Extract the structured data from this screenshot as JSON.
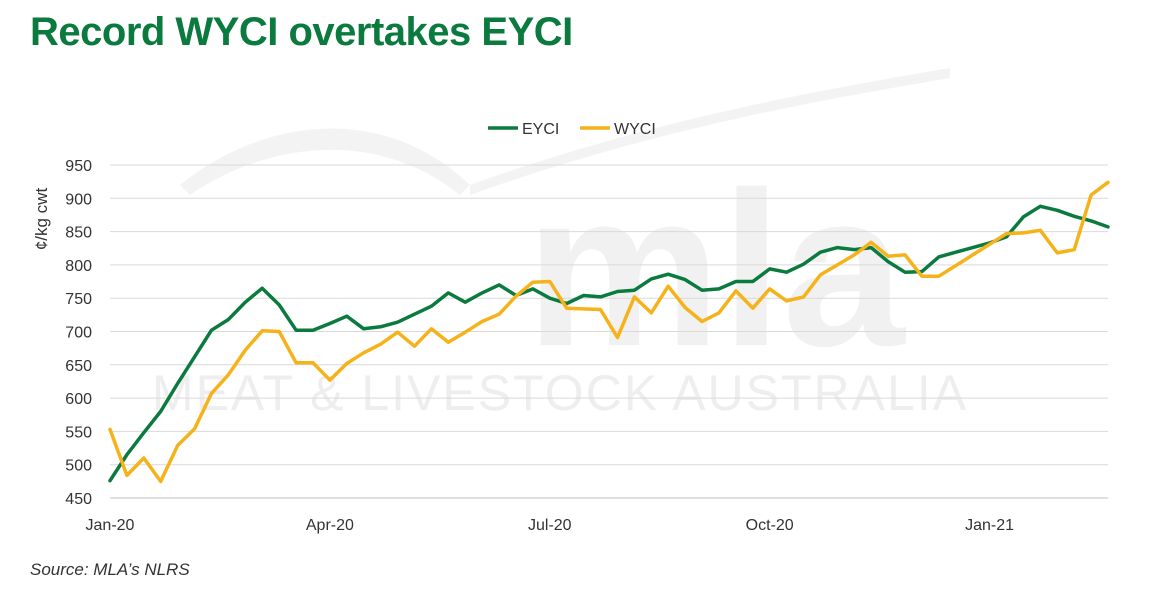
{
  "title": "Record WYCI overtakes EYCI",
  "source": "Source: MLA’s NLRS",
  "watermark": {
    "logo_text": "mla",
    "tagline": "MEAT & LIVESTOCK AUSTRALIA"
  },
  "colors": {
    "title": "#0b7a3e",
    "EYCI": "#0b7a3e",
    "WYCI": "#f5b21a",
    "grid": "#d9d9d9"
  },
  "chart_data": {
    "type": "line",
    "ylabel": "¢/kg cwt",
    "xlabel": "",
    "ylim": [
      450,
      950
    ],
    "yticks": [
      450,
      500,
      550,
      600,
      650,
      700,
      750,
      800,
      850,
      900,
      950
    ],
    "grid": "horizontal",
    "legend": "top-center",
    "x_tick_labels": [
      {
        "label": "Jan-20",
        "index": 0
      },
      {
        "label": "Apr-20",
        "index": 13
      },
      {
        "label": "Jul-20",
        "index": 26
      },
      {
        "label": "Oct-20",
        "index": 39
      },
      {
        "label": "Jan-21",
        "index": 52
      }
    ],
    "series": [
      {
        "name": "EYCI",
        "values": [
          476,
          515,
          548,
          580,
          622,
          662,
          702,
          718,
          744,
          765,
          740,
          702,
          702,
          712,
          723,
          704,
          707,
          714,
          726,
          738,
          758,
          744,
          758,
          770,
          754,
          764,
          750,
          742,
          754,
          752,
          760,
          762,
          779,
          786,
          778,
          762,
          764,
          775,
          775,
          794,
          789,
          801,
          819,
          826,
          823,
          826,
          805,
          789,
          790,
          812,
          819,
          826,
          833,
          842,
          872,
          888,
          882,
          873,
          866,
          857
        ]
      },
      {
        "name": "WYCI",
        "values": [
          553,
          484,
          510,
          475,
          529,
          554,
          607,
          635,
          672,
          701,
          700,
          653,
          653,
          627,
          652,
          668,
          681,
          699,
          678,
          704,
          684,
          699,
          715,
          726,
          753,
          774,
          775,
          735,
          734,
          733,
          691,
          752,
          728,
          768,
          736,
          715,
          728,
          761,
          735,
          764,
          746,
          752,
          785,
          800,
          815,
          834,
          813,
          815,
          783,
          783,
          799,
          815,
          831,
          847,
          848,
          852,
          818,
          823,
          905,
          924
        ]
      }
    ]
  }
}
